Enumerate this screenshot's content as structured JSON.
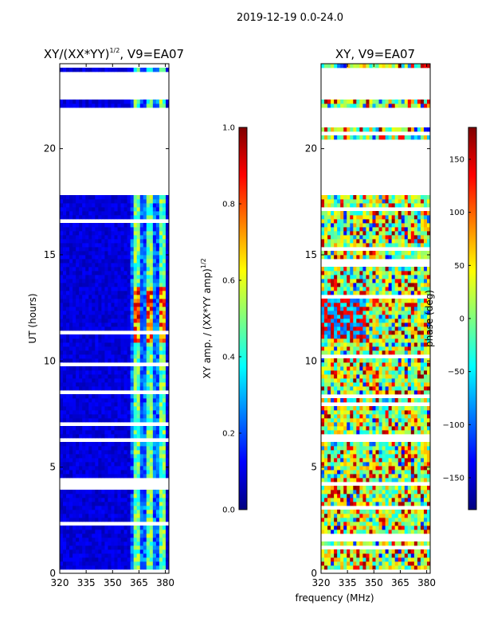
{
  "figure_title": "2019-12-19 0.0-24.0",
  "chart_data": [
    {
      "type": "heatmap",
      "title_main": "XY/(XX*YY)",
      "title_sup": "1/2",
      "title_tail": ", V9=EA07",
      "xlabel": "",
      "ylabel": "UT (hours)",
      "xlim": [
        320,
        382
      ],
      "ylim": [
        0,
        24
      ],
      "xticks": [
        320,
        335,
        350,
        365,
        380
      ],
      "yticks": [
        0,
        5,
        10,
        15,
        20
      ],
      "colorbar": {
        "label_main": "XY amp. / (XX*YY amp)",
        "label_sup": "1/2",
        "range": [
          0.0,
          1.0
        ],
        "ticks": [
          "0.0",
          "0.2",
          "0.4",
          "0.6",
          "0.8",
          "1.0"
        ],
        "colormap": "jet"
      }
    },
    {
      "type": "heatmap",
      "title_main": "XY, V9=EA07",
      "xlabel": "frequency (MHz)",
      "ylabel": "",
      "xlim": [
        320,
        382
      ],
      "ylim": [
        0,
        24
      ],
      "xticks": [
        320,
        335,
        350,
        365,
        380
      ],
      "yticks": [
        0,
        5,
        10,
        15,
        20
      ],
      "colorbar": {
        "label_main": "phase (deg)",
        "range": [
          -180,
          180
        ],
        "ticks": [
          "-150",
          "-100",
          "-50",
          "0",
          "50",
          "100",
          "150"
        ],
        "colormap": "jet"
      }
    }
  ],
  "colors": {
    "jet": [
      "#00007f",
      "#0000ff",
      "#007fff",
      "#00ffff",
      "#7fff7f",
      "#ffff00",
      "#ff7f00",
      "#ff0000",
      "#7f0000"
    ],
    "axes": "#000000",
    "background": "#ffffff"
  }
}
